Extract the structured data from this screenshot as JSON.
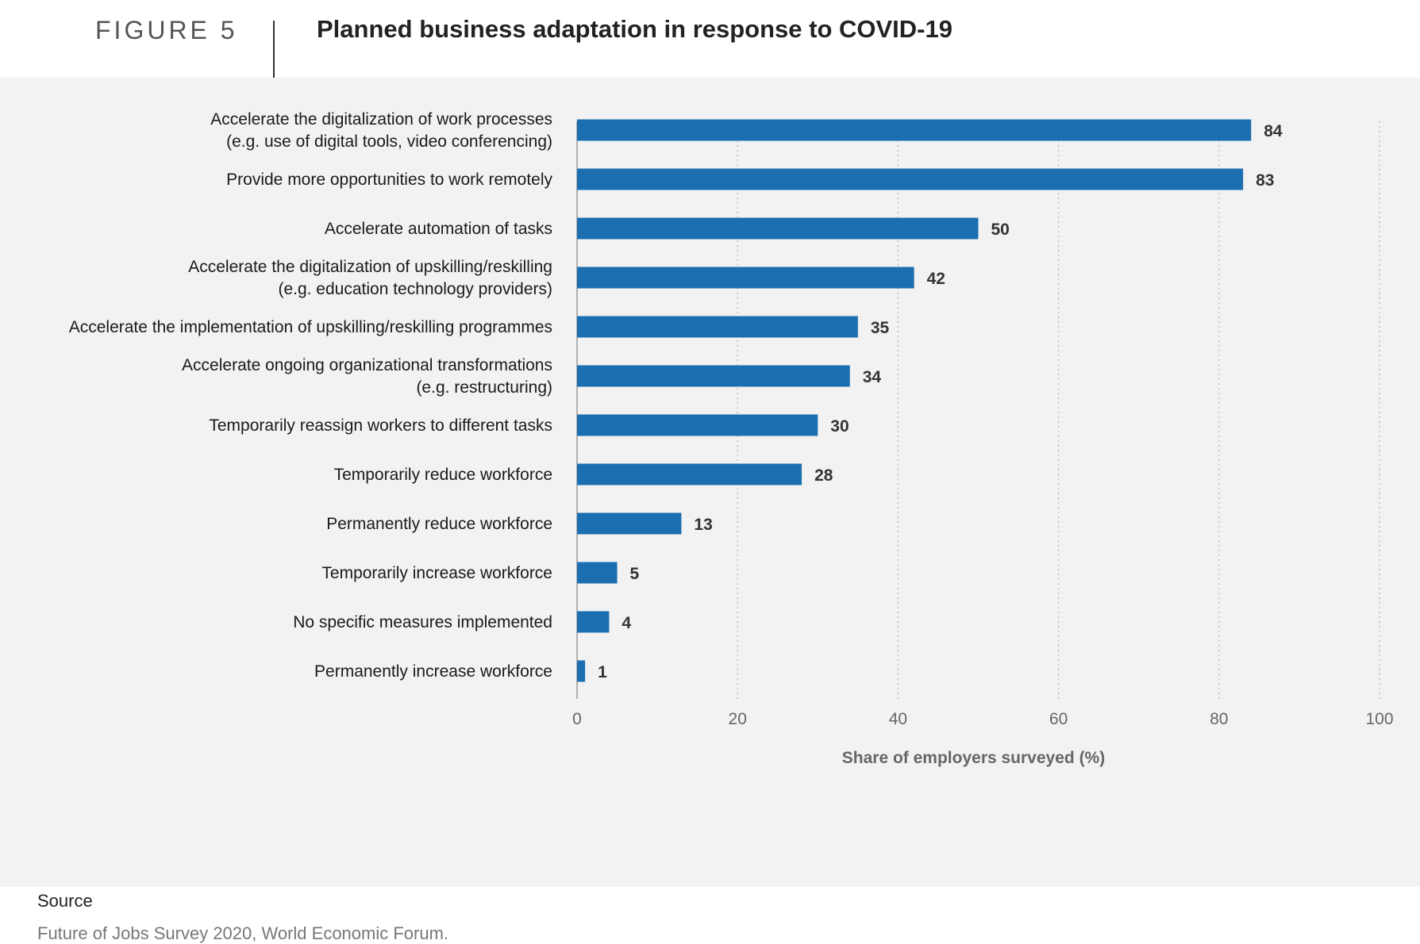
{
  "figure_label": "FIGURE 5",
  "title": "Planned business adaptation in response to COVID-19",
  "source": {
    "heading": "Source",
    "text": "Future of Jobs Survey 2020, World Economic Forum."
  },
  "colors": {
    "bar": "#1b6eb0",
    "panel_background": "#f2f2f2"
  },
  "chart_data": {
    "type": "bar",
    "orientation": "horizontal",
    "categories": [
      [
        "Accelerate the digitalization of work processes",
        "(e.g. use of digital tools, video conferencing)"
      ],
      [
        "Provide more opportunities to work remotely"
      ],
      [
        "Accelerate automation of tasks"
      ],
      [
        "Accelerate the digitalization of upskilling/reskilling",
        "(e.g. education technology providers)"
      ],
      [
        "Accelerate the implementation of upskilling/reskilling programmes"
      ],
      [
        "Accelerate ongoing organizational transformations",
        "(e.g. restructuring)"
      ],
      [
        "Temporarily reassign workers to different tasks"
      ],
      [
        "Temporarily reduce workforce"
      ],
      [
        "Permanently reduce workforce"
      ],
      [
        "Temporarily increase workforce"
      ],
      [
        "No specific measures implemented"
      ],
      [
        "Permanently increase workforce"
      ]
    ],
    "values": [
      84,
      83,
      50,
      42,
      35,
      34,
      30,
      28,
      13,
      5,
      4,
      1
    ],
    "xlabel": "Share of employers surveyed (%)",
    "xlim": [
      0,
      100
    ],
    "xticks": [
      0,
      20,
      40,
      60,
      80,
      100
    ],
    "grid": "vertical dotted",
    "data_labels": true
  }
}
